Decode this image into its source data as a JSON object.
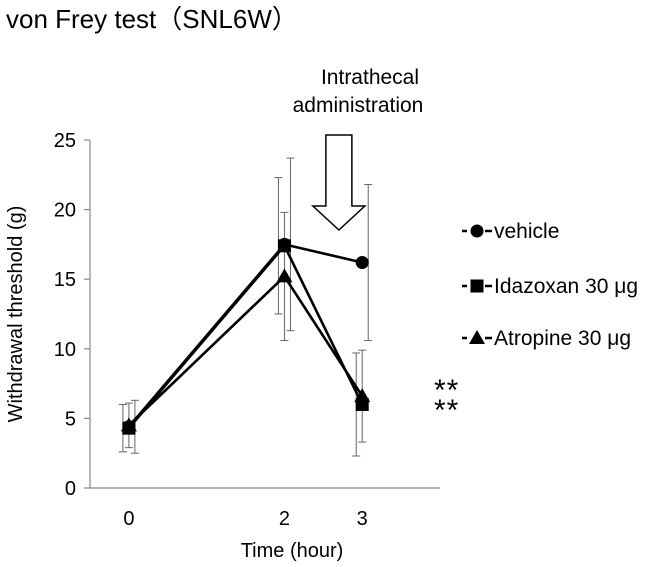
{
  "chart_data": {
    "type": "line",
    "title": "von Frey test（SNL6W）",
    "xlabel": "Time (hour)",
    "ylabel": "Withdrawal threshold (g)",
    "x": [
      0,
      2,
      3
    ],
    "x_tick_labels": [
      "0",
      "2",
      "3"
    ],
    "ylim": [
      0,
      25
    ],
    "y_ticks": [
      0,
      5,
      10,
      15,
      20,
      25
    ],
    "y_tick_labels": [
      "0",
      "5",
      "10",
      "15",
      "20",
      "25"
    ],
    "grid": false,
    "legend_position": "right",
    "series": [
      {
        "name": "vehicle",
        "marker": "circle",
        "values": [
          4.4,
          17.5,
          16.2
        ],
        "error": [
          1.9,
          6.2,
          5.6
        ]
      },
      {
        "name": "Idazoxan 30 μg",
        "marker": "square",
        "values": [
          4.3,
          17.4,
          6.0
        ],
        "error": [
          1.7,
          4.9,
          3.7
        ]
      },
      {
        "name": "Atropine 30 μg",
        "marker": "triangle",
        "values": [
          4.5,
          15.2,
          6.6
        ],
        "error": [
          1.6,
          4.6,
          3.3
        ]
      }
    ],
    "annotation": {
      "line1": "Intrathecal",
      "line2": "administration",
      "arrow_x": 2.7
    },
    "significance": {
      "at_x": 3,
      "labels": [
        "**",
        "**"
      ]
    }
  }
}
